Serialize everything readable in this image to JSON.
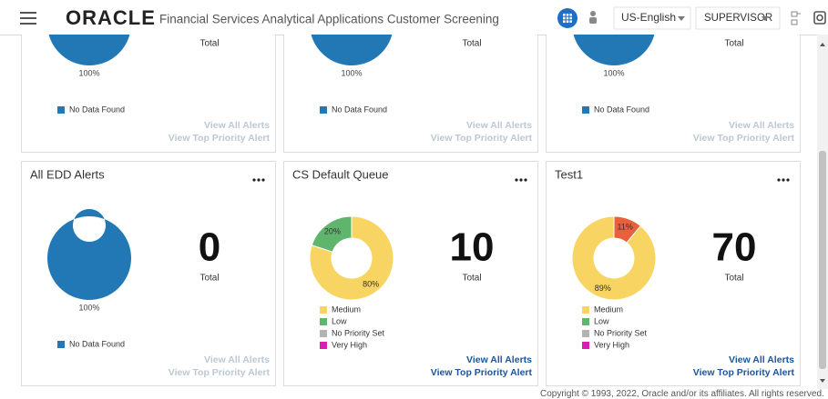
{
  "header": {
    "brand": "ORACLE",
    "app_title": "Financial Services Analytical Applications Customer Screening",
    "language": "US-English",
    "user": "SUPERVISOR"
  },
  "cards": [
    {
      "row": "top",
      "total_label": "Total",
      "chart": {
        "type": "pie",
        "values": [
          100
        ],
        "value_labels": [
          "100%"
        ],
        "colors": [
          "#2278b5"
        ]
      },
      "legend": [
        {
          "name": "No Data Found",
          "color": "#2278b5"
        }
      ],
      "links": [
        "View All Alerts",
        "View Top Priority Alert"
      ],
      "links_enabled": false
    },
    {
      "row": "top",
      "total_label": "Total",
      "chart": {
        "type": "pie",
        "values": [
          100
        ],
        "value_labels": [
          "100%"
        ],
        "colors": [
          "#2278b5"
        ]
      },
      "legend": [
        {
          "name": "No Data Found",
          "color": "#2278b5"
        }
      ],
      "links": [
        "View All Alerts",
        "View Top Priority Alert"
      ],
      "links_enabled": false
    },
    {
      "row": "top",
      "total_label": "Total",
      "chart": {
        "type": "pie",
        "values": [
          100
        ],
        "value_labels": [
          "100%"
        ],
        "colors": [
          "#2278b5"
        ]
      },
      "legend": [
        {
          "name": "No Data Found",
          "color": "#2278b5"
        }
      ],
      "links": [
        "View All Alerts",
        "View Top Priority Alert"
      ],
      "links_enabled": false
    },
    {
      "row": "bottom",
      "title": "All EDD Alerts",
      "total": 0,
      "total_label": "Total",
      "chart": {
        "type": "pie",
        "values": [
          100
        ],
        "value_labels": [
          "100%"
        ],
        "colors": [
          "#2278b5"
        ]
      },
      "legend": [
        {
          "name": "No Data Found",
          "color": "#2278b5"
        }
      ],
      "links": [
        "View All Alerts",
        "View Top Priority Alert"
      ],
      "links_enabled": false
    },
    {
      "row": "bottom",
      "title": "CS Default Queue",
      "total": 10,
      "total_label": "Total",
      "chart": {
        "type": "pie",
        "values": [
          80,
          20
        ],
        "value_labels": [
          "80%",
          "20%"
        ],
        "colors": [
          "#f8d462",
          "#5fb56b"
        ]
      },
      "legend": [
        {
          "name": "Medium",
          "color": "#f8d462"
        },
        {
          "name": "Low",
          "color": "#5fb56b"
        },
        {
          "name": "No Priority Set",
          "color": "#b3b3b3"
        },
        {
          "name": "Very High",
          "color": "#d81fb4"
        }
      ],
      "links": [
        "View All Alerts",
        "View Top Priority Alert"
      ],
      "links_enabled": true
    },
    {
      "row": "bottom",
      "title": "Test1",
      "total": 70,
      "total_label": "Total",
      "chart": {
        "type": "pie",
        "values": [
          11,
          89
        ],
        "value_labels": [
          "11%",
          "89%"
        ],
        "colors": [
          "#e9613c",
          "#f8d462"
        ]
      },
      "legend": [
        {
          "name": "Medium",
          "color": "#f8d462"
        },
        {
          "name": "Low",
          "color": "#5fb56b"
        },
        {
          "name": "No Priority Set",
          "color": "#b3b3b3"
        },
        {
          "name": "Very High",
          "color": "#d81fb4"
        }
      ],
      "links": [
        "View All Alerts",
        "View Top Priority Alert"
      ],
      "links_enabled": true
    }
  ],
  "footer": "Copyright © 1993, 2022, Oracle and/or its affiliates. All rights reserved."
}
